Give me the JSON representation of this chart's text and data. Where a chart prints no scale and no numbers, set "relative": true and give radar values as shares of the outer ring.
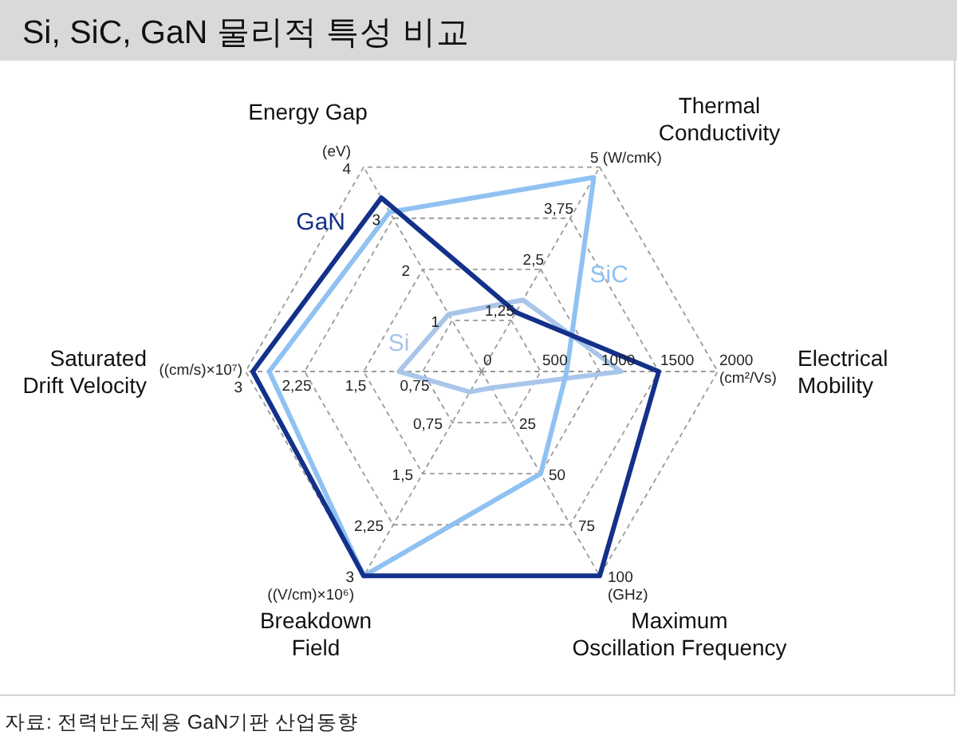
{
  "chart_data": {
    "type": "radar",
    "title": "Si, SiC, GaN 물리적 특성 비교",
    "categories": [
      "Thermal Conductivity",
      "Electrical Mobility",
      "Maximum Oscillation Frequency",
      "Breakdown Field",
      "Saturated Drift Velocity",
      "Energy Gap"
    ],
    "relative": true,
    "grid": true,
    "line_style": "solid",
    "series": [
      {
        "name": "GaN",
        "color": "#13318a",
        "values": [
          0.29,
          0.75,
          1,
          1,
          0.97,
          0.85
        ]
      },
      {
        "name": "SiC",
        "color": "#8fc2f2",
        "values": [
          0.95,
          0.36,
          0.5,
          1,
          0.9,
          0.78
        ]
      },
      {
        "name": "Si",
        "color": "#a9c6ea",
        "values": [
          0.35,
          0.59,
          0.08,
          0.1,
          0.35,
          0.28
        ]
      }
    ],
    "annotations": [
      {
        "text": "1,25",
        "x": "Thermal Conductivity"
      },
      {
        "text": "2,5",
        "x": "Thermal Conductivity"
      },
      {
        "text": "3,75",
        "x": "Thermal Conductivity"
      },
      {
        "text": "5 (W/cmK)",
        "x": "Thermal Conductivity"
      },
      {
        "text": "0",
        "x": "Electrical Mobility"
      },
      {
        "text": "500",
        "x": "Electrical Mobility"
      },
      {
        "text": "1000",
        "x": "Electrical Mobility"
      },
      {
        "text": "1500",
        "x": "Electrical Mobility"
      },
      {
        "text": "2000\n(cm²/Vs)",
        "x": "Electrical Mobility"
      },
      {
        "text": "25",
        "x": "Maximum Oscillation Frequency"
      },
      {
        "text": "50",
        "x": "Maximum Oscillation Frequency"
      },
      {
        "text": "75",
        "x": "Maximum Oscillation Frequency"
      },
      {
        "text": "100\n(GHz)",
        "x": "Maximum Oscillation Frequency"
      },
      {
        "text": "0,75",
        "x": "Breakdown Field"
      },
      {
        "text": "1,5",
        "x": "Breakdown Field"
      },
      {
        "text": "2,25",
        "x": "Breakdown Field"
      },
      {
        "text": "3\n((V/cm)×10⁶)",
        "x": "Breakdown Field"
      },
      {
        "text": "0,75",
        "x": "Saturated Drift Velocity"
      },
      {
        "text": "1,5",
        "x": "Saturated Drift Velocity"
      },
      {
        "text": "2,25",
        "x": "Saturated Drift Velocity"
      },
      {
        "text": "((cm/s)×10⁷)\n3",
        "x": "Saturated Drift Velocity"
      },
      {
        "text": "1",
        "x": "Energy Gap"
      },
      {
        "text": "2",
        "x": "Energy Gap"
      },
      {
        "text": "3",
        "x": "Energy Gap"
      },
      {
        "text": "(eV)\n4",
        "x": "Energy Gap"
      },
      "자료: 전력반도체용 GaN기판 산업동향"
    ]
  }
}
